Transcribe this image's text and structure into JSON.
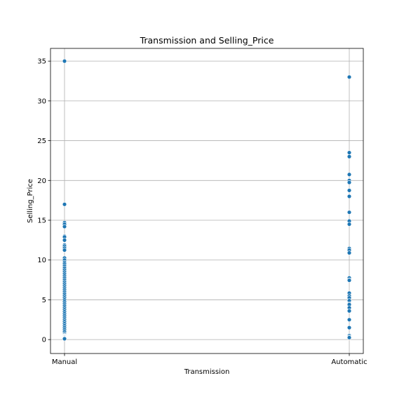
{
  "chart_data": {
    "type": "scatter",
    "title": "Transmission and Selling_Price",
    "xlabel": "Transmission",
    "ylabel": "Selling_Price",
    "categories": [
      "Manual",
      "Automatic"
    ],
    "ylim": [
      -1.75,
      36.6
    ],
    "yticks": [
      0,
      5,
      10,
      15,
      20,
      25,
      30,
      35
    ],
    "grid": true,
    "color": "#1f77b4",
    "series": [
      {
        "category": "Manual",
        "values": [
          35,
          17,
          14.7,
          14.5,
          14.2,
          13,
          12.9,
          12.5,
          11.9,
          11.75,
          11.5,
          11.25,
          10.25,
          10,
          9.7,
          9.5,
          9.25,
          9,
          8.75,
          8.5,
          8.25,
          8,
          7.75,
          7.5,
          7.25,
          7,
          6.75,
          6.5,
          6.25,
          6,
          5.75,
          5.5,
          5.25,
          5,
          4.75,
          4.5,
          4.25,
          4,
          3.75,
          3.5,
          3.25,
          3,
          2.75,
          2.5,
          2.25,
          2,
          1.75,
          1.5,
          1.25,
          1,
          0.75,
          0.6,
          0.5,
          0.45,
          0.4,
          0.35,
          0.3,
          0.25,
          0.2,
          0.15,
          0.1
        ]
      },
      {
        "category": "Automatic",
        "values": [
          33,
          23.5,
          23,
          20.75,
          20,
          19.75,
          18.75,
          18,
          16,
          14.9,
          14.5,
          11.45,
          11.25,
          10.9,
          7.75,
          7.5,
          7.45,
          5.85,
          5.5,
          5.25,
          4.9,
          4.5,
          4.4,
          4,
          3.6,
          2.5,
          1.5,
          0.5,
          0.35,
          0.25
        ]
      }
    ]
  }
}
